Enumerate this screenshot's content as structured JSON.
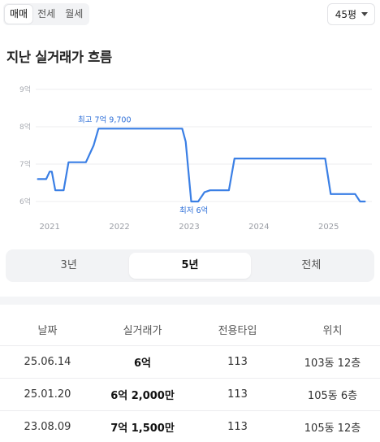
{
  "deal_tabs": [
    "매매",
    "전세",
    "월세"
  ],
  "active_deal_tab": 0,
  "size_select": {
    "value": "45평"
  },
  "section_title": "지난 실거래가 흐름",
  "chart_data": {
    "type": "line",
    "title": "",
    "xlabel": "",
    "ylabel": "",
    "y_ticks": [
      "9억",
      "8억",
      "7억",
      "6억"
    ],
    "x_ticks": [
      "2021",
      "2022",
      "2023",
      "2024",
      "2025"
    ],
    "ylim": [
      6,
      9
    ],
    "grid": true,
    "series": [
      {
        "color": "#3a7fe5",
        "points": [
          [
            "2020.83",
            6.6
          ],
          [
            "2020.95",
            6.6
          ],
          [
            "2021.0",
            6.8
          ],
          [
            "2021.03",
            6.8
          ],
          [
            "2021.08",
            6.3
          ],
          [
            "2021.2",
            6.3
          ],
          [
            "2021.27",
            7.05
          ],
          [
            "2021.52",
            7.05
          ],
          [
            "2021.63",
            7.5
          ],
          [
            "2021.7",
            7.95
          ],
          [
            "2022.9",
            7.95
          ],
          [
            "2022.95",
            7.6
          ],
          [
            "2023.03",
            6.0
          ],
          [
            "2023.13",
            6.0
          ],
          [
            "2023.22",
            6.25
          ],
          [
            "2023.3",
            6.3
          ],
          [
            "2023.57",
            6.3
          ],
          [
            "2023.65",
            7.15
          ],
          [
            "2024.95",
            7.15
          ],
          [
            "2025.03",
            6.2
          ],
          [
            "2025.38",
            6.2
          ],
          [
            "2025.45",
            6.0
          ],
          [
            "2025.52",
            6.0
          ]
        ]
      }
    ],
    "annotations": {
      "max_label": "최고 7억 9,700",
      "min_label": "최저 6억"
    }
  },
  "range_tabs": [
    "3년",
    "5년",
    "전체"
  ],
  "active_range_tab": 1,
  "table": {
    "headers": [
      "날짜",
      "실거래가",
      "전용타입",
      "위치"
    ],
    "rows": [
      [
        "25.06.14",
        "6억",
        "113",
        "103동 12층"
      ],
      [
        "25.01.20",
        "6억 2,000만",
        "113",
        "105동 6층"
      ],
      [
        "23.08.09",
        "7억 1,500만",
        "113",
        "105동 12층"
      ]
    ]
  }
}
